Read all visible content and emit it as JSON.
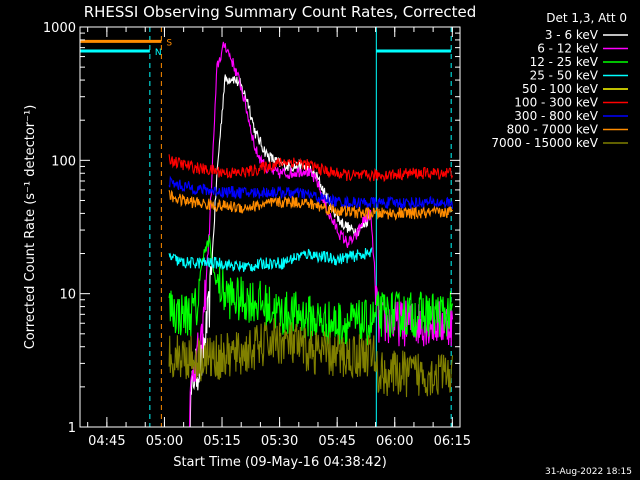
{
  "chart_data": {
    "type": "line",
    "title": "RHESSI Observing Summary Count Rates, Corrected",
    "xlabel": "Start Time (09-May-16 04:38:42)",
    "ylabel": "Corrected Count Rate (s⁻¹ detector⁻¹)",
    "footer_date": "31-Aug-2022 18:15",
    "legend_title": "Det 1,3, Att 0",
    "legend_position": "right",
    "scale_y": "log",
    "xlim_minutes": [
      -0.7,
      98.3
    ],
    "ylim": [
      1,
      1000
    ],
    "x_ticks": [
      {
        "t": 6.3,
        "label": "04:45"
      },
      {
        "t": 21.3,
        "label": "05:00"
      },
      {
        "t": 36.3,
        "label": "05:15"
      },
      {
        "t": 51.3,
        "label": "05:30"
      },
      {
        "t": 66.3,
        "label": "05:45"
      },
      {
        "t": 81.3,
        "label": "06:00"
      },
      {
        "t": 96.3,
        "label": "06:15"
      }
    ],
    "y_ticks": [
      {
        "v": 1,
        "label": "1"
      },
      {
        "v": 10,
        "label": "10"
      },
      {
        "v": 100,
        "label": "100"
      },
      {
        "v": 1000,
        "label": "1000"
      }
    ],
    "x_tick_units": "minutes after 04:38:42",
    "series": [
      {
        "name": "3 - 6 keV",
        "color": "#ffffff",
        "points": [
          [
            27,
            0
          ],
          [
            29,
            2.5
          ],
          [
            31,
            3
          ],
          [
            33,
            8
          ],
          [
            35,
            80
          ],
          [
            37,
            400
          ],
          [
            39,
            420
          ],
          [
            41,
            370
          ],
          [
            43,
            280
          ],
          [
            45,
            160
          ],
          [
            48,
            110
          ],
          [
            51,
            95
          ],
          [
            54,
            90
          ],
          [
            58,
            90
          ],
          [
            61,
            75
          ],
          [
            64,
            50
          ],
          [
            67,
            35
          ],
          [
            70,
            30
          ],
          [
            72,
            30
          ],
          [
            74,
            35
          ],
          [
            75,
            40
          ]
        ]
      },
      {
        "name": "6 - 12 keV",
        "color": "#ff00ff",
        "points": [
          [
            27,
            0
          ],
          [
            29,
            3
          ],
          [
            31,
            4
          ],
          [
            33,
            30
          ],
          [
            35,
            500
          ],
          [
            37,
            750
          ],
          [
            39,
            550
          ],
          [
            41,
            380
          ],
          [
            43,
            220
          ],
          [
            45,
            120
          ],
          [
            48,
            85
          ],
          [
            51,
            80
          ],
          [
            54,
            80
          ],
          [
            58,
            85
          ],
          [
            61,
            70
          ],
          [
            64,
            40
          ],
          [
            67,
            28
          ],
          [
            69,
            24
          ],
          [
            71,
            26
          ],
          [
            73,
            35
          ],
          [
            75,
            40
          ],
          [
            77,
            6
          ],
          [
            80,
            6
          ],
          [
            85,
            6
          ],
          [
            89,
            6
          ],
          [
            95,
            6
          ],
          [
            96.5,
            6
          ]
        ]
      },
      {
        "name": "12 - 25 keV",
        "color": "#00ff00",
        "points": [
          [
            22.5,
            8
          ],
          [
            25,
            7
          ],
          [
            28,
            7
          ],
          [
            30,
            8
          ],
          [
            31,
            18
          ],
          [
            33,
            25
          ],
          [
            34,
            15
          ],
          [
            35,
            12
          ],
          [
            37,
            10
          ],
          [
            40,
            9
          ],
          [
            44,
            9
          ],
          [
            48,
            8
          ],
          [
            52,
            7
          ],
          [
            56,
            7
          ],
          [
            60,
            6.5
          ],
          [
            64,
            6
          ],
          [
            68,
            6
          ],
          [
            72,
            6
          ],
          [
            75,
            6
          ],
          [
            77,
            7
          ],
          [
            80,
            7
          ],
          [
            85,
            7
          ],
          [
            89,
            7
          ],
          [
            95,
            7
          ],
          [
            96.5,
            7
          ]
        ]
      },
      {
        "name": "25 - 50 keV",
        "color": "#00ffff",
        "points": [
          [
            22.5,
            19
          ],
          [
            26,
            17
          ],
          [
            30,
            17
          ],
          [
            33,
            17
          ],
          [
            36,
            17
          ],
          [
            40,
            16
          ],
          [
            44,
            16
          ],
          [
            48,
            17
          ],
          [
            52,
            17
          ],
          [
            56,
            19
          ],
          [
            59,
            20
          ],
          [
            62,
            19
          ],
          [
            66,
            18
          ],
          [
            70,
            19
          ],
          [
            74,
            20
          ],
          [
            75.5,
            20
          ],
          [
            77,
            null
          ],
          [
            96.5,
            null
          ]
        ]
      },
      {
        "name": "50 - 100 keV",
        "color": "#ffff00",
        "points": []
      },
      {
        "name": "100 - 300 keV",
        "color": "#ff0000",
        "points": [
          [
            22.5,
            103
          ],
          [
            25,
            95
          ],
          [
            28,
            90
          ],
          [
            32,
            85
          ],
          [
            36,
            82
          ],
          [
            40,
            80
          ],
          [
            44,
            83
          ],
          [
            48,
            90
          ],
          [
            52,
            97
          ],
          [
            54,
            98
          ],
          [
            57,
            95
          ],
          [
            60,
            90
          ],
          [
            64,
            82
          ],
          [
            68,
            78
          ],
          [
            72,
            76
          ],
          [
            76,
            77
          ],
          [
            80,
            78
          ],
          [
            85,
            80
          ],
          [
            89,
            80
          ],
          [
            93,
            80
          ],
          [
            96.5,
            82
          ]
        ]
      },
      {
        "name": "300 - 800 keV",
        "color": "#0000ff",
        "points": [
          [
            22.5,
            68
          ],
          [
            26,
            64
          ],
          [
            30,
            61
          ],
          [
            34,
            59
          ],
          [
            38,
            58
          ],
          [
            42,
            57
          ],
          [
            46,
            57
          ],
          [
            50,
            58
          ],
          [
            54,
            57
          ],
          [
            58,
            56
          ],
          [
            62,
            52
          ],
          [
            66,
            49
          ],
          [
            70,
            48
          ],
          [
            74,
            48
          ],
          [
            78,
            48
          ],
          [
            82,
            48
          ],
          [
            86,
            48
          ],
          [
            90,
            48
          ],
          [
            96.5,
            48
          ]
        ]
      },
      {
        "name": "800 - 7000 keV",
        "color": "#ff8c00",
        "points": [
          [
            22.5,
            54
          ],
          [
            26,
            50
          ],
          [
            30,
            48
          ],
          [
            34,
            46
          ],
          [
            38,
            45
          ],
          [
            42,
            44
          ],
          [
            46,
            46
          ],
          [
            50,
            48
          ],
          [
            54,
            49
          ],
          [
            58,
            48
          ],
          [
            62,
            45
          ],
          [
            66,
            42
          ],
          [
            70,
            41
          ],
          [
            74,
            40
          ],
          [
            78,
            40
          ],
          [
            82,
            40
          ],
          [
            86,
            40
          ],
          [
            90,
            40
          ],
          [
            96.5,
            41
          ]
        ]
      },
      {
        "name": "7000 - 15000 keV",
        "color": "#808000",
        "points": [
          [
            22.5,
            3.6
          ],
          [
            26,
            3.4
          ],
          [
            30,
            3.3
          ],
          [
            34,
            3.3
          ],
          [
            38,
            3.4
          ],
          [
            42,
            3.6
          ],
          [
            46,
            4
          ],
          [
            50,
            4.5
          ],
          [
            54,
            4.2
          ],
          [
            58,
            3.8
          ],
          [
            62,
            3.6
          ],
          [
            66,
            3.4
          ],
          [
            70,
            3.4
          ],
          [
            74,
            3.5
          ],
          [
            75.5,
            3.6
          ],
          [
            77,
            2.5
          ],
          [
            80,
            2.5
          ],
          [
            85,
            2.5
          ],
          [
            89,
            2.5
          ],
          [
            95,
            2.5
          ],
          [
            96.5,
            2.5
          ]
        ]
      }
    ],
    "state_bars": [
      {
        "label": "S",
        "color": "#ff8c00",
        "x_from": -0.7,
        "x_to": 20.5,
        "y": 780
      },
      {
        "label": "N",
        "color": "#00ffff",
        "x_from": -0.7,
        "x_to": 17.5,
        "y": 660
      },
      {
        "label": "",
        "color": "#00ffff",
        "x_from": 76.5,
        "x_to": 96.0,
        "y": 660
      }
    ],
    "vertical_lines": [
      {
        "t": 17.5,
        "color": "#00ffff",
        "style": "dashed"
      },
      {
        "t": 20.5,
        "color": "#ff8c00",
        "style": "dashed"
      },
      {
        "t": 76.5,
        "color": "#00ffff",
        "style": "solid"
      },
      {
        "t": 96.0,
        "color": "#00ffff",
        "style": "dashed"
      }
    ]
  }
}
